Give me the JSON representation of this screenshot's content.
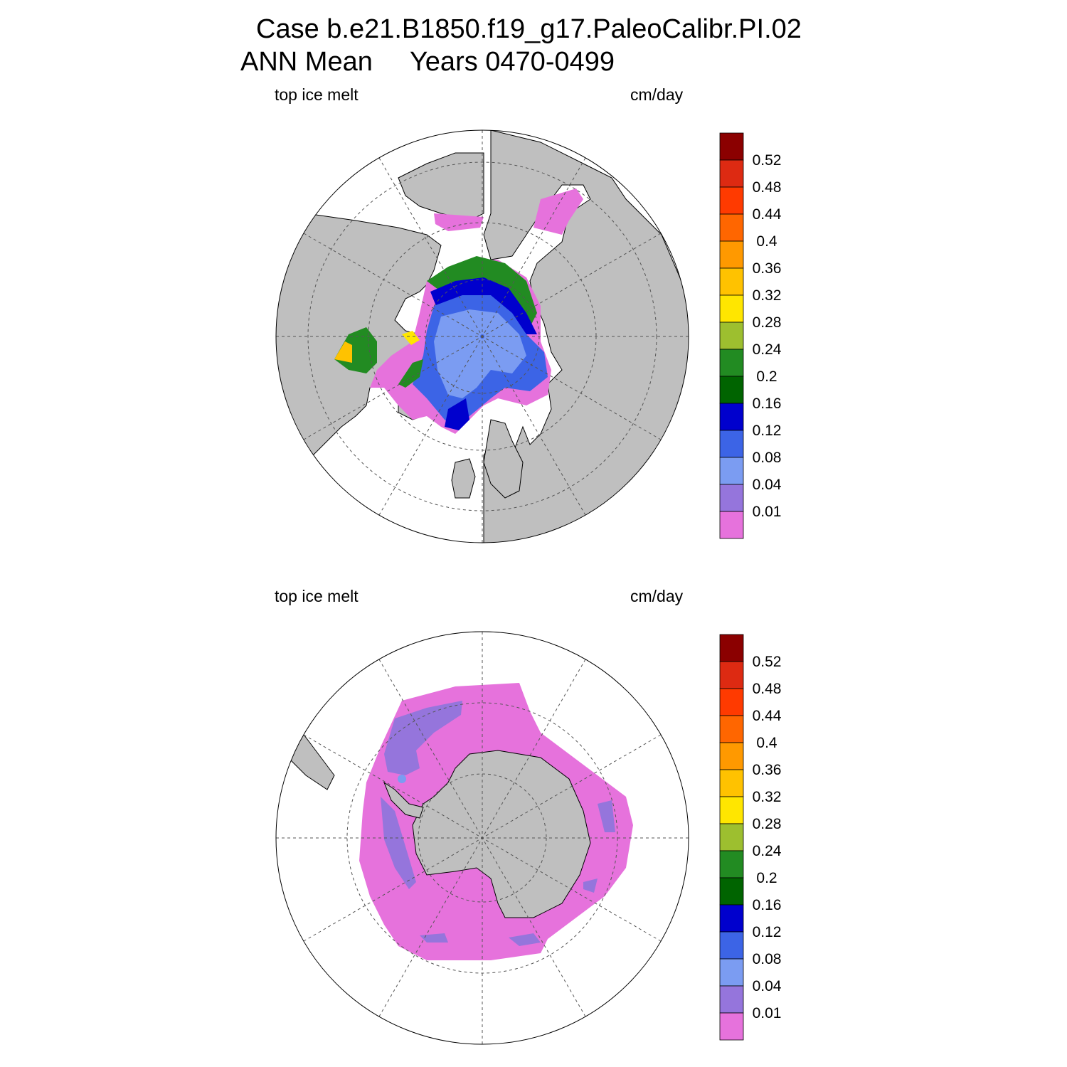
{
  "title_line1": "Case b.e21.B1850.f19_g17.PaleoCalibr.PI.02",
  "title_line2": "ANN Mean     Years 0470-0499",
  "colors": {
    "land": "#bfbfbf",
    "coast": "#000000",
    "grid": "#555555"
  },
  "colorbar": {
    "labels": [
      "0.52",
      "0.48",
      "0.44",
      "0.4",
      "0.36",
      "0.32",
      "0.28",
      "0.24",
      "0.2",
      "0.16",
      "0.12",
      "0.08",
      "0.04",
      "0.01"
    ],
    "colors": [
      "#8b0000",
      "#dd2a12",
      "#ff3a00",
      "#ff6600",
      "#ff9900",
      "#ffc200",
      "#ffe600",
      "#9dbf2f",
      "#228b22",
      "#006400",
      "#0000cd",
      "#3c64e6",
      "#7b9cf2",
      "#9575dc",
      "#e672dc"
    ]
  },
  "panels": [
    {
      "id": "north",
      "left_label": "top ice melt",
      "right_label": "cm/day"
    },
    {
      "id": "south",
      "left_label": "top ice melt",
      "right_label": "cm/day"
    }
  ]
}
